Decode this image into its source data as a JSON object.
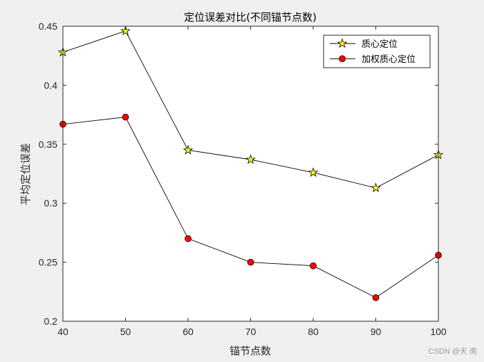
{
  "chart_data": {
    "type": "line",
    "title": "定位误差对比(不同锚节点数)",
    "xlabel": "锚节点数",
    "ylabel": "平均定位误差",
    "x": [
      40,
      50,
      60,
      70,
      80,
      90,
      100
    ],
    "xlim": [
      40,
      100
    ],
    "ylim": [
      0.2,
      0.45
    ],
    "xticks": [
      "40",
      "50",
      "60",
      "70",
      "80",
      "90",
      "100"
    ],
    "yticks": [
      "0.2",
      "0.25",
      "0.3",
      "0.35",
      "0.4",
      "0.45"
    ],
    "grid": false,
    "legend_position": "top-right",
    "series": [
      {
        "name": "质心定位",
        "values": [
          0.428,
          0.446,
          0.345,
          0.337,
          0.326,
          0.313,
          0.341
        ],
        "marker": "star",
        "marker_fill": "#ffff00",
        "line_color": "#000000"
      },
      {
        "name": "加权质心定位",
        "values": [
          0.367,
          0.373,
          0.27,
          0.25,
          0.247,
          0.22,
          0.256
        ],
        "marker": "circle",
        "marker_fill": "#ff0000",
        "line_color": "#000000"
      }
    ]
  },
  "watermark": "CSDN @天 南"
}
